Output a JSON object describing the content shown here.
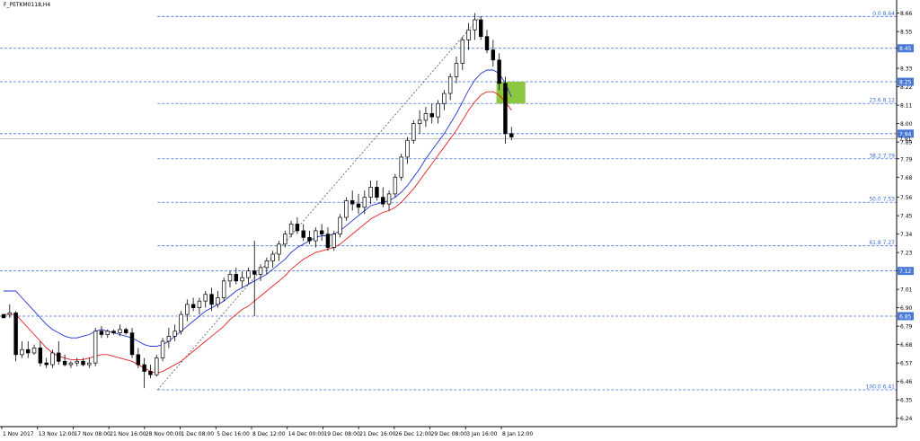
{
  "chart_data": {
    "type": "candlestick",
    "symbol_title": "F_PETKM0118,H4",
    "ylim": [
      6.19,
      8.69
    ],
    "y_ticks": [
      "8.66",
      "8.55",
      "8.45",
      "8.33",
      "8.22",
      "8.11",
      "8.00",
      "7.89",
      "7.79",
      "7.68",
      "7.56",
      "7.45",
      "7.34",
      "7.23",
      "7.12",
      "7.01",
      "6.90",
      "6.79",
      "6.68",
      "6.57",
      "6.46",
      "6.35",
      "6.24"
    ],
    "x_labels": [
      "1 Nov 2017",
      "13 Nov 12:00",
      "17 Nov 08:00",
      "21 Nov 16:00",
      "28 Nov 00:00",
      "1 Dec 08:00",
      "5 Dec 16:00",
      "8 Dec 12:00",
      "14 Dec 00:00",
      "19 Dec 08:00",
      "21 Dec 16:00",
      "26 Dec 12:00",
      "29 Dec 08:00",
      "3 Jan 16:00",
      "8 Jan 12:00"
    ],
    "price_tags": [
      {
        "value": 8.45,
        "label": "8.45"
      },
      {
        "value": 8.25,
        "label": "8.25"
      },
      {
        "value": 7.94,
        "label": "7.94"
      },
      {
        "value": 7.12,
        "label": "7.12"
      },
      {
        "value": 6.85,
        "label": "6.85"
      }
    ],
    "current_price": {
      "value": 7.91,
      "label": "7.91"
    },
    "fibonacci": [
      {
        "value": 8.64,
        "label": "0.0 8.64"
      },
      {
        "value": 8.12,
        "label": "23.6 8.12"
      },
      {
        "value": 7.79,
        "label": "38.2 7.79"
      },
      {
        "value": 7.53,
        "label": "50.0 7.53"
      },
      {
        "value": 7.27,
        "label": "61.8 7.27"
      },
      {
        "value": 6.41,
        "label": "100.0 6.41"
      }
    ],
    "trendline": {
      "from": [
        0.1757,
        6.41
      ],
      "to": [
        0.5355,
        8.64
      ]
    },
    "zone": {
      "x_from": 0.5537,
      "x_to": 0.5859,
      "y_from": 8.12,
      "y_to": 8.25,
      "color": "#8dc63f"
    },
    "candle_x_range": [
      0.0,
      0.5664
    ],
    "candles": [
      [
        6.86,
        6.86,
        6.84,
        6.84
      ],
      [
        6.86,
        6.92,
        6.84,
        6.87
      ],
      [
        6.87,
        6.88,
        6.58,
        6.62
      ],
      [
        6.62,
        6.7,
        6.6,
        6.65
      ],
      [
        6.65,
        6.7,
        6.6,
        6.63
      ],
      [
        6.63,
        6.68,
        6.62,
        6.66
      ],
      [
        6.66,
        6.7,
        6.55,
        6.57
      ],
      [
        6.57,
        6.6,
        6.54,
        6.56
      ],
      [
        6.56,
        6.65,
        6.54,
        6.63
      ],
      [
        6.63,
        6.7,
        6.56,
        6.58
      ],
      [
        6.58,
        6.62,
        6.55,
        6.56
      ],
      [
        6.56,
        6.58,
        6.54,
        6.57
      ],
      [
        6.57,
        6.6,
        6.55,
        6.58
      ],
      [
        6.58,
        6.6,
        6.55,
        6.56
      ],
      [
        6.56,
        6.6,
        6.54,
        6.57
      ],
      [
        6.57,
        6.78,
        6.55,
        6.76
      ],
      [
        6.76,
        6.79,
        6.72,
        6.74
      ],
      [
        6.74,
        6.77,
        6.72,
        6.76
      ],
      [
        6.76,
        6.77,
        6.74,
        6.75
      ],
      [
        6.75,
        6.8,
        6.73,
        6.77
      ],
      [
        6.77,
        6.78,
        6.74,
        6.75
      ],
      [
        6.75,
        6.78,
        6.6,
        6.62
      ],
      [
        6.62,
        6.66,
        6.54,
        6.56
      ],
      [
        6.56,
        6.6,
        6.42,
        6.52
      ],
      [
        6.52,
        6.56,
        6.48,
        6.5
      ],
      [
        6.5,
        6.62,
        6.49,
        6.6
      ],
      [
        6.6,
        6.72,
        6.58,
        6.7
      ],
      [
        6.7,
        6.78,
        6.66,
        6.73
      ],
      [
        6.73,
        6.8,
        6.7,
        6.76
      ],
      [
        6.76,
        6.88,
        6.74,
        6.86
      ],
      [
        6.86,
        6.95,
        6.82,
        6.92
      ],
      [
        6.92,
        6.96,
        6.88,
        6.9
      ],
      [
        6.9,
        6.96,
        6.86,
        6.94
      ],
      [
        6.94,
        7.0,
        6.9,
        6.98
      ],
      [
        6.98,
        7.02,
        6.88,
        6.92
      ],
      [
        6.92,
        7.0,
        6.9,
        6.96
      ],
      [
        6.96,
        7.08,
        6.94,
        7.06
      ],
      [
        7.06,
        7.12,
        7.02,
        7.1
      ],
      [
        7.1,
        7.14,
        7.04,
        7.06
      ],
      [
        7.06,
        7.12,
        7.02,
        7.08
      ],
      [
        7.08,
        7.14,
        7.04,
        7.12
      ],
      [
        7.12,
        7.3,
        6.85,
        7.1
      ],
      [
        7.1,
        7.16,
        7.06,
        7.14
      ],
      [
        7.14,
        7.2,
        7.1,
        7.18
      ],
      [
        7.18,
        7.24,
        7.14,
        7.22
      ],
      [
        7.22,
        7.3,
        7.18,
        7.28
      ],
      [
        7.28,
        7.36,
        7.26,
        7.34
      ],
      [
        7.34,
        7.42,
        7.32,
        7.4
      ],
      [
        7.4,
        7.44,
        7.34,
        7.36
      ],
      [
        7.36,
        7.4,
        7.3,
        7.32
      ],
      [
        7.32,
        7.36,
        7.28,
        7.3
      ],
      [
        7.3,
        7.38,
        7.26,
        7.36
      ],
      [
        7.36,
        7.4,
        7.3,
        7.34
      ],
      [
        7.34,
        7.38,
        7.24,
        7.26
      ],
      [
        7.26,
        7.36,
        7.24,
        7.34
      ],
      [
        7.34,
        7.46,
        7.32,
        7.44
      ],
      [
        7.44,
        7.56,
        7.42,
        7.54
      ],
      [
        7.54,
        7.6,
        7.48,
        7.52
      ],
      [
        7.52,
        7.58,
        7.46,
        7.5
      ],
      [
        7.5,
        7.6,
        7.46,
        7.56
      ],
      [
        7.56,
        7.66,
        7.52,
        7.62
      ],
      [
        7.62,
        7.66,
        7.54,
        7.56
      ],
      [
        7.56,
        7.62,
        7.5,
        7.52
      ],
      [
        7.52,
        7.6,
        7.48,
        7.58
      ],
      [
        7.58,
        7.7,
        7.56,
        7.68
      ],
      [
        7.68,
        7.82,
        7.66,
        7.8
      ],
      [
        7.8,
        7.92,
        7.76,
        7.9
      ],
      [
        7.9,
        8.02,
        7.88,
        8.0
      ],
      [
        8.0,
        8.08,
        7.94,
        8.02
      ],
      [
        8.02,
        8.1,
        7.98,
        8.06
      ],
      [
        8.06,
        8.12,
        8.0,
        8.04
      ],
      [
        8.04,
        8.14,
        8.0,
        8.12
      ],
      [
        8.12,
        8.2,
        8.08,
        8.18
      ],
      [
        8.18,
        8.3,
        8.14,
        8.28
      ],
      [
        8.28,
        8.4,
        8.24,
        8.36
      ],
      [
        8.36,
        8.52,
        8.32,
        8.5
      ],
      [
        8.5,
        8.6,
        8.44,
        8.56
      ],
      [
        8.56,
        8.66,
        8.5,
        8.62
      ],
      [
        8.62,
        8.64,
        8.5,
        8.52
      ],
      [
        8.52,
        8.56,
        8.42,
        8.44
      ],
      [
        8.44,
        8.5,
        8.34,
        8.38
      ],
      [
        8.38,
        8.42,
        8.2,
        8.24
      ],
      [
        8.24,
        8.28,
        7.88,
        7.94
      ],
      [
        7.94,
        7.98,
        7.9,
        7.92
      ]
    ],
    "ma_blue": [
      7.0,
      7.0,
      7.0,
      6.96,
      6.92,
      6.88,
      6.84,
      6.8,
      6.77,
      6.75,
      6.73,
      6.72,
      6.72,
      6.73,
      6.74,
      6.76,
      6.77,
      6.76,
      6.75,
      6.74,
      6.73,
      6.72,
      6.7,
      6.68,
      6.67,
      6.67,
      6.68,
      6.7,
      6.73,
      6.76,
      6.79,
      6.82,
      6.85,
      6.88,
      6.9,
      6.92,
      6.94,
      6.97,
      7.0,
      7.02,
      7.04,
      7.06,
      7.08,
      7.1,
      7.13,
      7.16,
      7.19,
      7.23,
      7.26,
      7.28,
      7.3,
      7.32,
      7.33,
      7.33,
      7.34,
      7.36,
      7.39,
      7.42,
      7.45,
      7.48,
      7.51,
      7.52,
      7.53,
      7.54,
      7.56,
      7.59,
      7.63,
      7.68,
      7.73,
      7.79,
      7.84,
      7.89,
      7.94,
      8.0,
      8.06,
      8.13,
      8.2,
      8.26,
      8.3,
      8.32,
      8.32,
      8.3,
      8.24,
      8.16
    ],
    "ma_red": [
      6.86,
      6.86,
      6.86,
      6.82,
      6.78,
      6.74,
      6.7,
      6.66,
      6.63,
      6.61,
      6.6,
      6.59,
      6.59,
      6.59,
      6.6,
      6.61,
      6.62,
      6.62,
      6.61,
      6.6,
      6.59,
      6.58,
      6.56,
      6.54,
      6.52,
      6.51,
      6.52,
      6.54,
      6.56,
      6.58,
      6.61,
      6.64,
      6.67,
      6.7,
      6.73,
      6.76,
      6.79,
      6.83,
      6.86,
      6.89,
      6.91,
      6.94,
      6.97,
      7.0,
      7.03,
      7.06,
      7.09,
      7.13,
      7.16,
      7.19,
      7.21,
      7.23,
      7.24,
      7.25,
      7.26,
      7.28,
      7.31,
      7.34,
      7.37,
      7.4,
      7.43,
      7.45,
      7.47,
      7.48,
      7.5,
      7.53,
      7.57,
      7.61,
      7.66,
      7.71,
      7.76,
      7.81,
      7.86,
      7.91,
      7.96,
      8.02,
      8.08,
      8.13,
      8.17,
      8.19,
      8.19,
      8.17,
      8.13,
      8.08
    ]
  }
}
